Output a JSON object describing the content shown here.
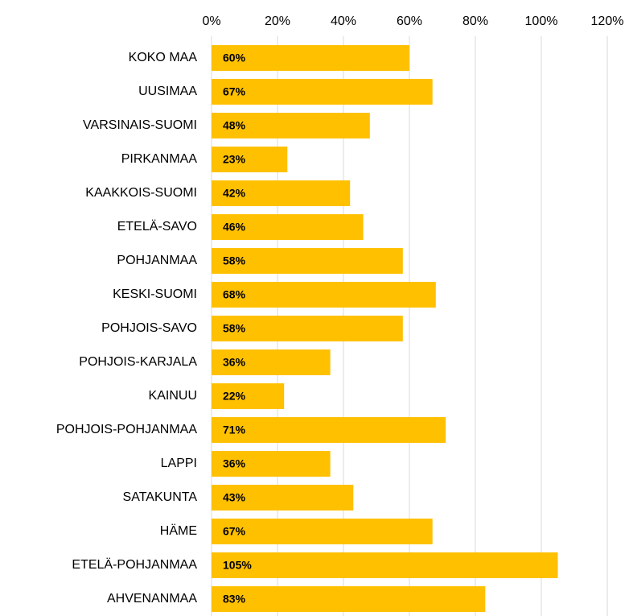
{
  "chart_data": {
    "type": "barh",
    "categories": [
      "KOKO MAA",
      "UUSIMAA",
      "VARSINAIS-SUOMI",
      "PIRKANMAA",
      "KAAKKOIS-SUOMI",
      "ETELÄ-SAVO",
      "POHJANMAA",
      "KESKI-SUOMI",
      "POHJOIS-SAVO",
      "POHJOIS-KARJALA",
      "KAINUU",
      "POHJOIS-POHJANMAA",
      "LAPPI",
      "SATAKUNTA",
      "HÄME",
      "ETELÄ-POHJANMAA",
      "AHVENANMAA"
    ],
    "values": [
      60,
      67,
      48,
      23,
      42,
      46,
      58,
      68,
      58,
      36,
      22,
      71,
      36,
      43,
      67,
      105,
      83
    ],
    "value_labels": [
      "60%",
      "67%",
      "48%",
      "23%",
      "42%",
      "46%",
      "58%",
      "68%",
      "58%",
      "36%",
      "22%",
      "71%",
      "36%",
      "43%",
      "67%",
      "105%",
      "83%"
    ],
    "color": "#ffc000",
    "xlim": [
      0,
      120
    ],
    "xticks": [
      {
        "value": 0,
        "label": "0%"
      },
      {
        "value": 20,
        "label": "20%"
      },
      {
        "value": 40,
        "label": "40%"
      },
      {
        "value": 60,
        "label": "60%"
      },
      {
        "value": 80,
        "label": "80%"
      },
      {
        "value": 100,
        "label": "100%"
      },
      {
        "value": 120,
        "label": "120%"
      }
    ],
    "grid": true
  }
}
